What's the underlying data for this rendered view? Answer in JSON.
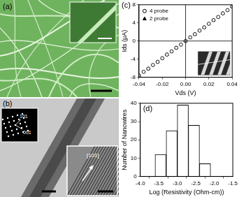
{
  "chart_data": [
    {
      "type": "scatter",
      "annotations": [
        "(c)"
      ],
      "x_label": "Vds (V)",
      "y_label": "Ids (μA)",
      "xlim": [
        -0.04,
        0.04
      ],
      "xticks": [
        -0.04,
        -0.02,
        {
          "value": 0,
          "label": "0.00"
        },
        0.02,
        0.04
      ],
      "ylim": [
        -8,
        8
      ],
      "yticks": [
        -8,
        -4,
        0,
        4,
        8
      ],
      "grid": false,
      "legend": "upper left",
      "series": [
        {
          "name": "4 probe",
          "color": "#000000",
          "marker": "open-circle",
          "x": [
            -0.04,
            -0.036,
            -0.032,
            -0.028,
            -0.024,
            -0.02,
            -0.016,
            -0.012,
            -0.008,
            -0.004,
            0,
            0.004,
            0.008,
            0.012,
            0.016,
            0.02,
            0.024,
            0.028,
            0.032,
            0.036,
            0.04
          ],
          "values": [
            -7.6,
            -6.8,
            -6.1,
            -5.3,
            -4.6,
            -3.8,
            -3.0,
            -2.3,
            -1.5,
            -0.8,
            0,
            0.8,
            1.5,
            2.3,
            3.0,
            3.8,
            4.6,
            5.3,
            6.1,
            6.8,
            7.6
          ]
        },
        {
          "name": "2 probe",
          "color": "#000000",
          "marker": "triangle",
          "x": [
            -0.04,
            -0.032,
            -0.024,
            -0.016,
            -0.008,
            0,
            0.008,
            0.016,
            0.024,
            0.032,
            0.04
          ],
          "values": [
            -7.6,
            -6.1,
            -4.6,
            -3.0,
            -1.5,
            0,
            1.5,
            3.0,
            4.6,
            6.1,
            7.6
          ]
        }
      ]
    },
    {
      "type": "histogram",
      "annotations": [
        "(d)"
      ],
      "x_label": "Log (Resistivity (Ohm-cm))",
      "y_label": "Number of Nanowires",
      "bins": [
        -3.6,
        -3.3,
        -3.0,
        -2.7,
        -2.4,
        -2.1
      ],
      "values": [
        12,
        25,
        39,
        28,
        7
      ],
      "color": "#ffffff",
      "xlim": [
        -4,
        -1.5
      ],
      "xticks": [
        {
          "value": -4,
          "label": "-4.0"
        },
        -3.5,
        {
          "value": -3,
          "label": "-3.0"
        },
        -2.5,
        {
          "value": -2,
          "label": "-2.0"
        },
        -1.5
      ],
      "ylim": [
        0,
        40
      ],
      "yticks": [
        0,
        10,
        20,
        30,
        40
      ],
      "grid": false
    }
  ],
  "images": {
    "a": {
      "label": "(a)"
    },
    "b": {
      "label": "(b)",
      "diffraction_labels": [
        "101",
        "001"
      ],
      "lattice_label": "[101]"
    }
  }
}
